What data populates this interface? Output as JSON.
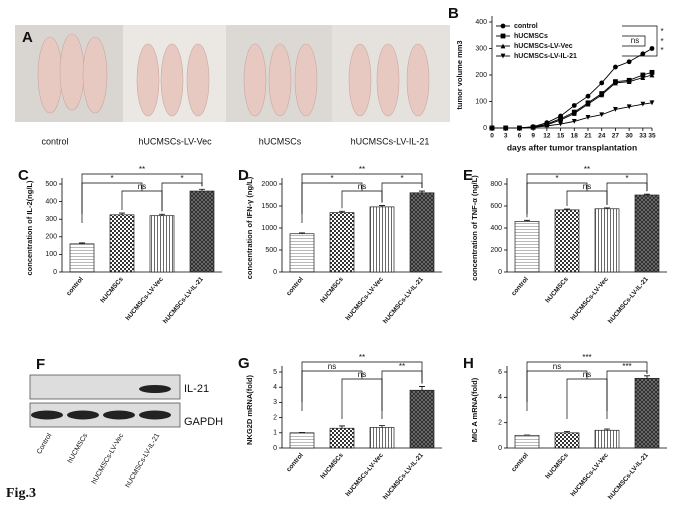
{
  "figure_label": "Fig.3",
  "photo": {
    "label": "A",
    "captions": [
      "control",
      "hUCMSCs-LV-Vec",
      "hUCMSCs",
      "hUCMSCs-LV-IL-21"
    ]
  },
  "blot": {
    "label": "F",
    "bands": [
      "IL-21",
      "GAPDH"
    ],
    "lanes": [
      "Control",
      "hUCMSCs",
      "hUCMSCs-LV-Vec",
      "hUCMSCs-LV-IL-21"
    ]
  },
  "chart_data": [
    {
      "type": "line",
      "label": "B",
      "xlabel": "days after tumor transplantation",
      "ylabel": "tumor volume mm3",
      "x": [
        0,
        3,
        6,
        9,
        12,
        15,
        18,
        21,
        24,
        27,
        30,
        33,
        35
      ],
      "xlim": [
        0,
        35
      ],
      "xticks": [
        0,
        3,
        6,
        9,
        12,
        15,
        18,
        21,
        24,
        27,
        30,
        33,
        35
      ],
      "ylim": [
        0,
        400
      ],
      "yticks": [
        0,
        100,
        200,
        300,
        400
      ],
      "series": [
        {
          "name": "control",
          "values": [
            0,
            0,
            0,
            5,
            20,
            45,
            85,
            120,
            170,
            230,
            250,
            280,
            300
          ]
        },
        {
          "name": "hUCMSCs",
          "values": [
            0,
            0,
            0,
            3,
            15,
            35,
            60,
            95,
            130,
            175,
            180,
            200,
            210
          ]
        },
        {
          "name": "hUCMSCs-LV-Vec",
          "values": [
            0,
            0,
            0,
            3,
            12,
            30,
            55,
            90,
            125,
            170,
            175,
            190,
            200
          ]
        },
        {
          "name": "hUCMSCs-LV-IL-21",
          "values": [
            0,
            0,
            0,
            2,
            8,
            15,
            25,
            40,
            50,
            70,
            80,
            90,
            95
          ]
        }
      ],
      "annotations": [
        "*",
        "*",
        "ns",
        "*"
      ]
    },
    {
      "type": "bar",
      "label": "C",
      "ylabel": "concentration of IL-2(ng/L)",
      "categories": [
        "control",
        "hUCMSCs",
        "hUCMSCs-LV-Vec",
        "hUCMSCs-LV-IL-21"
      ],
      "values": [
        160,
        325,
        320,
        460
      ],
      "errors": [
        5,
        10,
        8,
        10
      ],
      "ylim": [
        0,
        500
      ],
      "yticks": [
        0,
        100,
        200,
        300,
        400,
        500
      ],
      "annotations": [
        "**",
        "*",
        "ns",
        "*"
      ]
    },
    {
      "type": "bar",
      "label": "D",
      "ylabel": "concentration of IFN-γ (ng/L)",
      "categories": [
        "control",
        "hUCMSCs",
        "hUCMSCs-LV-Vec",
        "hUCMSCs-LV-IL-21"
      ],
      "values": [
        870,
        1350,
        1480,
        1800
      ],
      "errors": [
        20,
        30,
        30,
        40
      ],
      "ylim": [
        0,
        2000
      ],
      "yticks": [
        0,
        500,
        1000,
        1500,
        2000
      ],
      "annotations": [
        "**",
        "*",
        "ns",
        "*"
      ]
    },
    {
      "type": "bar",
      "label": "E",
      "ylabel": "concentration of TNF-α (ng/L)",
      "categories": [
        "control",
        "hUCMSCs",
        "hUCMSCs-LV-Vec",
        "hUCMSCs-LV-IL-21"
      ],
      "values": [
        460,
        565,
        575,
        700
      ],
      "errors": [
        10,
        8,
        8,
        8
      ],
      "ylim": [
        0,
        800
      ],
      "yticks": [
        0,
        200,
        400,
        600,
        800
      ],
      "annotations": [
        "**",
        "*",
        "ns",
        "*"
      ]
    },
    {
      "type": "bar",
      "label": "G",
      "ylabel": "NKG2D mRNA(fold)",
      "categories": [
        "control",
        "hUCMSCs",
        "hUCMSCs-LV-Vec",
        "hUCMSCs-LV-IL-21"
      ],
      "values": [
        1,
        1.3,
        1.35,
        3.8
      ],
      "errors": [
        0.02,
        0.15,
        0.12,
        0.25
      ],
      "ylim": [
        0,
        5
      ],
      "yticks": [
        0,
        1,
        2,
        3,
        4,
        5
      ],
      "annotations": [
        "**",
        "ns",
        "ns",
        "**"
      ]
    },
    {
      "type": "bar",
      "label": "H",
      "ylabel": "MIC A mRNA(fold)",
      "categories": [
        "control",
        "hUCMSCs",
        "hUCMSCs-LV-Vec",
        "hUCMSCs-LV-IL-21"
      ],
      "values": [
        1,
        1.2,
        1.4,
        5.5
      ],
      "errors": [
        0.02,
        0.1,
        0.1,
        0.2
      ],
      "ylim": [
        0,
        6
      ],
      "yticks": [
        0,
        2,
        4,
        6
      ],
      "annotations": [
        "***",
        "ns",
        "ns",
        "***"
      ]
    }
  ]
}
